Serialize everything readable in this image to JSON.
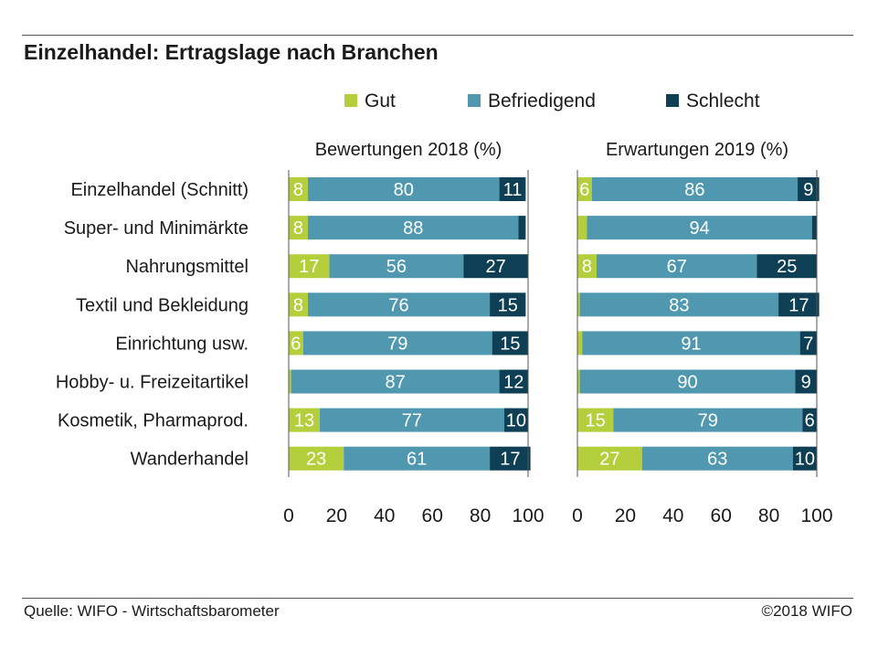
{
  "header": {
    "title": "Einzelhandel: Ertragslage nach Branchen"
  },
  "footer": {
    "source": "Quelle: WIFO - Wirtschaftsbarometer",
    "copyright": "©2018 WIFO"
  },
  "colors": {
    "gut": "#b5cf3c",
    "befriedigend": "#4f98b0",
    "schlecht": "#0e3f54",
    "label": "#ffffff"
  },
  "chart_data": {
    "type": "bar",
    "orientation": "horizontal",
    "stacked": true,
    "legend": [
      "Gut",
      "Befriedigend",
      "Schlecht"
    ],
    "legend_position": "top",
    "categories": [
      "Einzelhandel (Schnitt)",
      "Super- und Minimärkte",
      "Nahrungsmittel",
      "Textil und Bekleidung",
      "Einrichtung usw.",
      "Hobby- u. Freizeitartikel",
      "Kosmetik, Pharmaprod.",
      "Wanderhandel"
    ],
    "xlim": [
      0,
      100
    ],
    "xticks": [
      0,
      20,
      40,
      60,
      80,
      100
    ],
    "panels": [
      {
        "title": "Bewertungen 2018 (%)",
        "series": [
          {
            "name": "Gut",
            "values": [
              8,
              8,
              17,
              8,
              6,
              1,
              13,
              23
            ],
            "labels": [
              "8",
              "8",
              "17",
              "8",
              "6",
              "",
              "13",
              "23"
            ]
          },
          {
            "name": "Befriedigend",
            "values": [
              80,
              88,
              56,
              76,
              79,
              87,
              77,
              61
            ],
            "labels": [
              "80",
              "88",
              "56",
              "76",
              "79",
              "87",
              "77",
              "61"
            ]
          },
          {
            "name": "Schlecht",
            "values": [
              11,
              3,
              27,
              15,
              15,
              12,
              10,
              17
            ],
            "labels": [
              "11",
              "",
              "27",
              "15",
              "15",
              "12",
              "10",
              "17"
            ]
          }
        ]
      },
      {
        "title": "Erwartungen 2019 (%)",
        "series": [
          {
            "name": "Gut",
            "values": [
              6,
              4,
              8,
              1,
              2,
              1,
              15,
              27
            ],
            "labels": [
              "6",
              "",
              "8",
              "",
              "",
              "",
              "15",
              "27"
            ]
          },
          {
            "name": "Befriedigend",
            "values": [
              86,
              94,
              67,
              83,
              91,
              90,
              79,
              63
            ],
            "labels": [
              "86",
              "94",
              "67",
              "83",
              "91",
              "90",
              "79",
              "63"
            ]
          },
          {
            "name": "Schlecht",
            "values": [
              9,
              2,
              25,
              17,
              7,
              9,
              6,
              10
            ],
            "labels": [
              "9",
              "",
              "25",
              "17",
              "7",
              "9",
              "6",
              "10"
            ]
          }
        ]
      }
    ]
  }
}
